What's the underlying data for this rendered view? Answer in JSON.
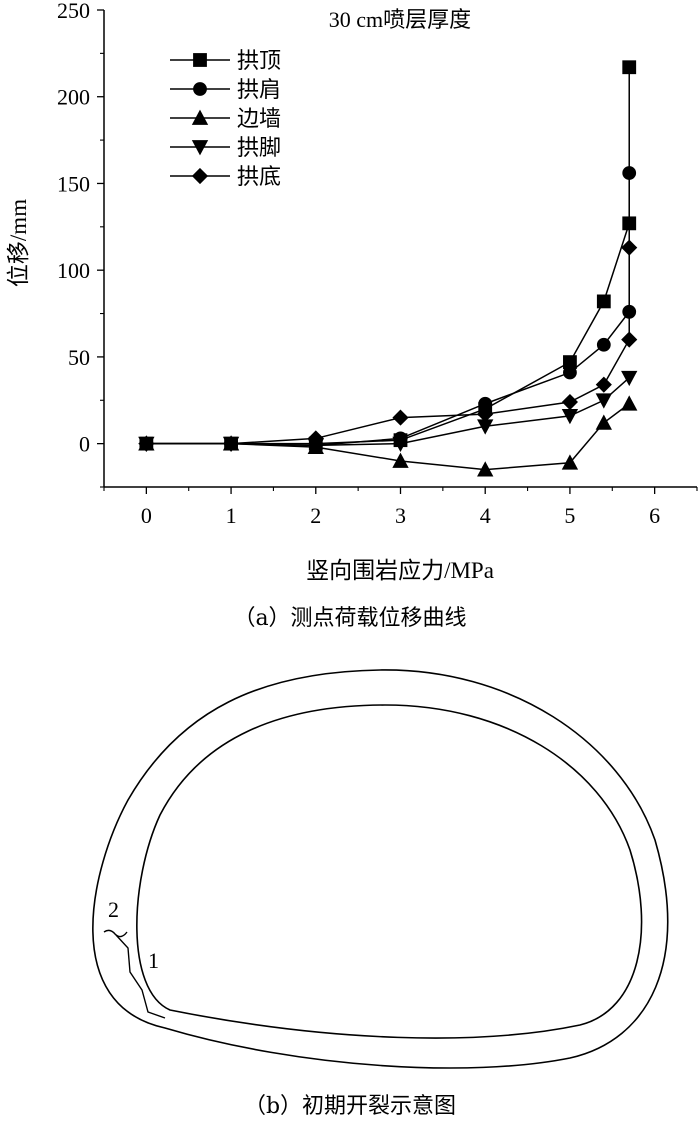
{
  "chart_data": {
    "type": "line",
    "title": "30 cm喷层厚度",
    "xlabel": "竖向围岩应力/MPa",
    "ylabel": "位移/mm",
    "xlim": [
      -0.5,
      6.5
    ],
    "ylim": [
      -25,
      250
    ],
    "xticks": [
      0,
      1,
      2,
      3,
      4,
      5,
      6
    ],
    "yticks": [
      0,
      50,
      100,
      150,
      200,
      250
    ],
    "legend_position": "top-left",
    "grid": false,
    "x": [
      0,
      1,
      2,
      3,
      4,
      5,
      5.4,
      5.7
    ],
    "series": [
      {
        "name": "拱顶",
        "marker": "square",
        "values": [
          0,
          0,
          0,
          2,
          20,
          47,
          82,
          127
        ],
        "extra_top": 217
      },
      {
        "name": "拱肩",
        "marker": "circle",
        "values": [
          0,
          0,
          -1,
          3,
          23,
          41,
          57,
          76
        ],
        "extra_top": 156
      },
      {
        "name": "边墙",
        "marker": "triangle-up",
        "values": [
          0,
          0,
          -2,
          -10,
          -15,
          -11,
          12,
          23
        ]
      },
      {
        "name": "拱脚",
        "marker": "triangle-down",
        "values": [
          0,
          0,
          -1,
          0,
          10,
          16,
          25,
          38
        ]
      },
      {
        "name": "拱底",
        "marker": "diamond",
        "values": [
          0,
          0,
          3,
          15,
          17,
          24,
          34,
          60
        ],
        "extra_top": 113
      }
    ]
  },
  "captions": {
    "a": "（a）测点荷载位移曲线",
    "b": "（b）初期开裂示意图"
  },
  "diagram": {
    "crack_labels": [
      "1",
      "2"
    ]
  }
}
